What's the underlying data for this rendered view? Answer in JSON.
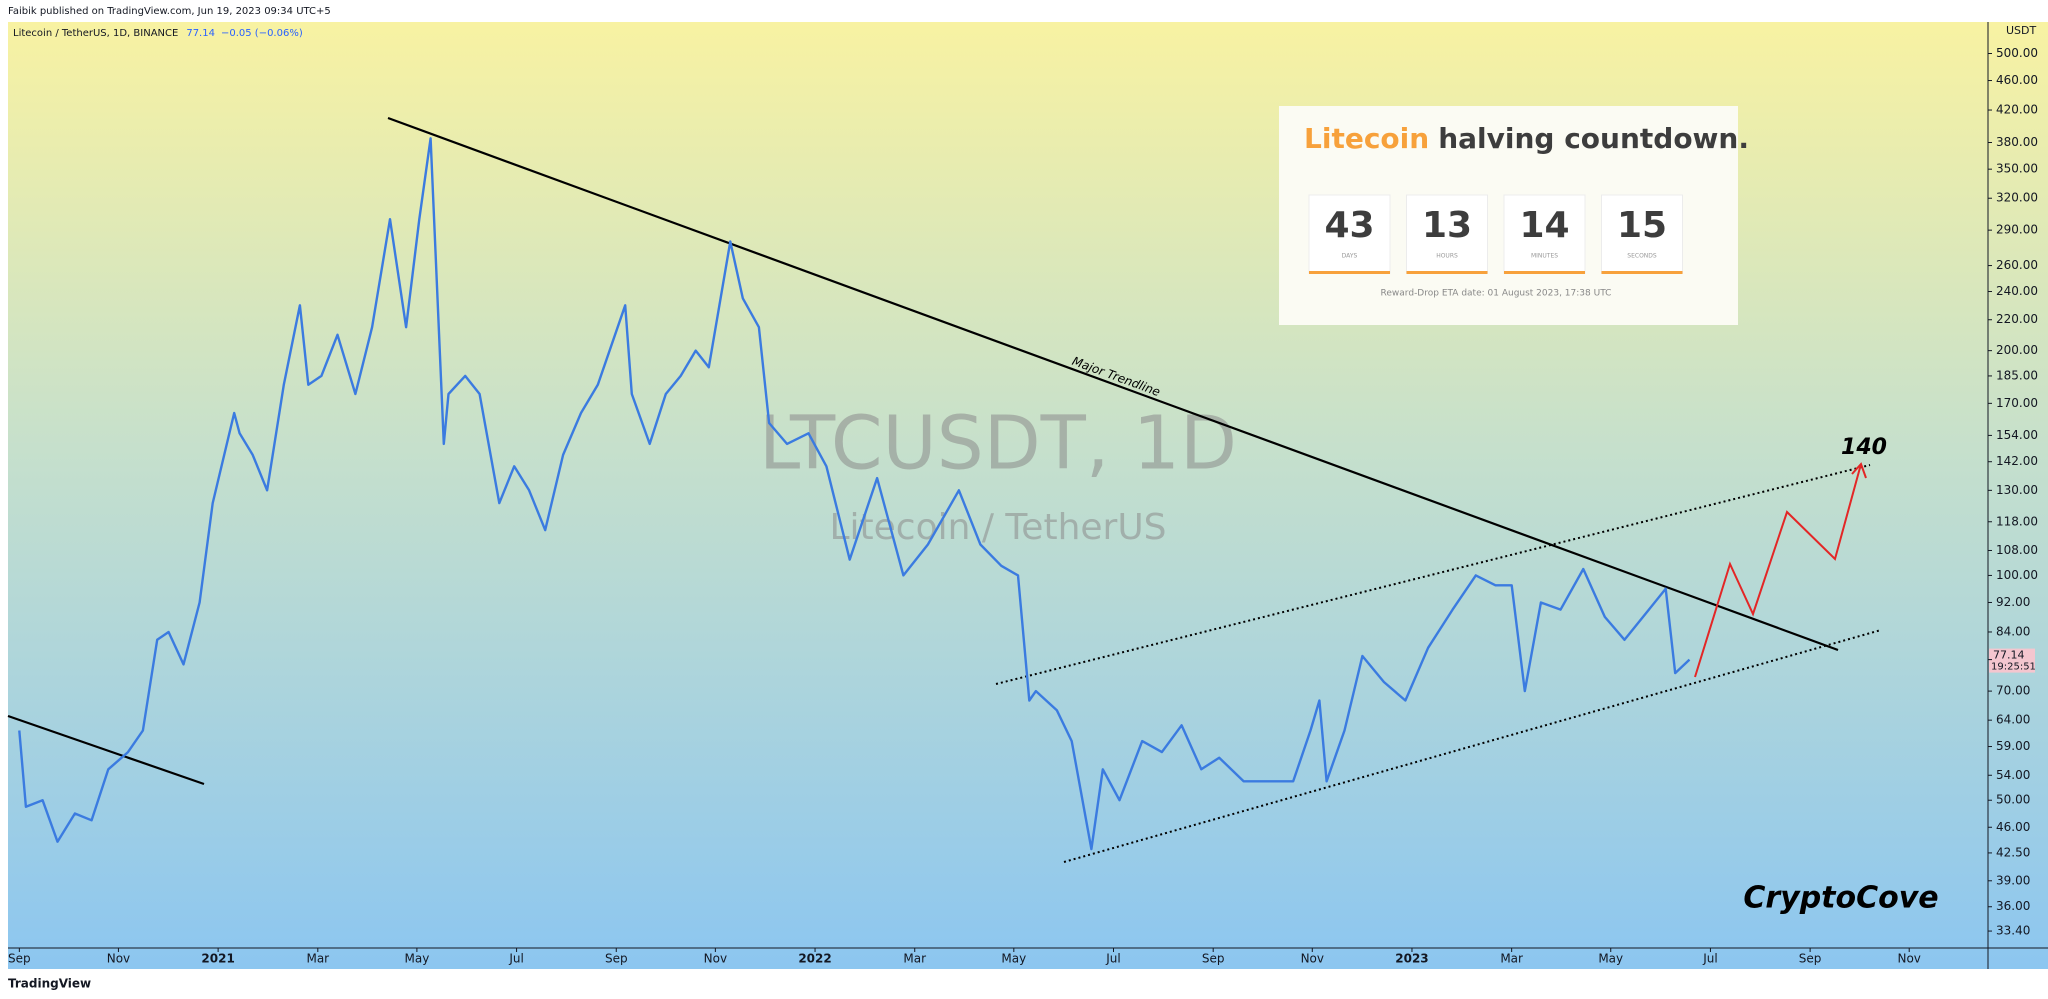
{
  "header": "Faibik published on TradingView.com, Jun 19, 2023 09:34 UTC+5",
  "footer": "TradingView",
  "chart_data": {
    "type": "line",
    "change": "−0.05 (−0.06%)",
    "bar_countdown": "19:25:51",
    "watermark": "LTCUSDT, 1D",
    "watermark_sub": "Litecoin / TetherUS",
    "y_unit": "USDT",
    "log_scale": true,
    "grid": false,
    "x": [
      2020.667,
      2020.678,
      2020.706,
      2020.731,
      2020.76,
      2020.788,
      2020.816,
      2020.849,
      2020.874,
      2020.898,
      2020.917,
      2020.942,
      2020.969,
      2020.991,
      2021.027,
      2021.036,
      2021.058,
      2021.082,
      2021.11,
      2021.137,
      2021.151,
      2021.173,
      2021.2,
      2021.23,
      2021.258,
      2021.288,
      2021.315,
      2021.337,
      2021.356,
      2021.378,
      2021.386,
      2021.414,
      2021.438,
      2021.471,
      2021.496,
      2021.521,
      2021.548,
      2021.578,
      2021.608,
      2021.636,
      2021.682,
      2021.693,
      2021.723,
      2021.75,
      2021.775,
      2021.8,
      2021.822,
      2021.858,
      2021.879,
      2021.906,
      2021.923,
      2021.953,
      2021.989,
      2022.019,
      2022.058,
      2022.104,
      2022.148,
      2022.189,
      2022.241,
      2022.277,
      2022.312,
      2022.34,
      2022.359,
      2022.37,
      2022.405,
      2022.43,
      2022.463,
      2022.482,
      2022.51,
      2022.548,
      2022.581,
      2022.614,
      2022.647,
      2022.677,
      2022.718,
      2022.76,
      2022.801,
      2022.83,
      2022.845,
      2022.857,
      2022.887,
      2022.917,
      2022.953,
      2022.989,
      2023.027,
      2023.068,
      2023.107,
      2023.14,
      2023.167,
      2023.189,
      2023.216,
      2023.249,
      2023.287,
      2023.323,
      2023.356,
      2023.397,
      2023.425,
      2023.441,
      2023.465
    ],
    "series": [
      {
        "name": "Litecoin / TetherUS, 1D, BINANCE",
        "color": "#3b7be0",
        "values": [
          62,
          49,
          50,
          44,
          48,
          47,
          55,
          58,
          62,
          82,
          84,
          76,
          92,
          125,
          165,
          155,
          145,
          130,
          180,
          230,
          180,
          185,
          210,
          175,
          215,
          300,
          215,
          300,
          385,
          150,
          175,
          185,
          175,
          125,
          140,
          130,
          115,
          145,
          165,
          180,
          230,
          175,
          150,
          175,
          185,
          200,
          190,
          280,
          235,
          215,
          160,
          150,
          155,
          140,
          105,
          135,
          100,
          110,
          130,
          110,
          103,
          100,
          68,
          70,
          66,
          60,
          43,
          55,
          50,
          60,
          58,
          63,
          55,
          57,
          53,
          53,
          53,
          62,
          68,
          53,
          62,
          78,
          72,
          68,
          80,
          90,
          100,
          97,
          97,
          70,
          92,
          90,
          102,
          88,
          82,
          90,
          96,
          74,
          77.14
        ]
      }
    ],
    "xlim": [
      2020.648,
      2023.965
    ],
    "ylim": [
      31.7,
      551
    ],
    "xticks": [
      {
        "value": 2020.667,
        "label": "Sep"
      },
      {
        "value": 2020.833,
        "label": "Nov"
      },
      2021,
      {
        "value": 2021.167,
        "label": "Mar"
      },
      {
        "value": 2021.333,
        "label": "May"
      },
      {
        "value": 2021.5,
        "label": "Jul"
      },
      {
        "value": 2021.667,
        "label": "Sep"
      },
      {
        "value": 2021.833,
        "label": "Nov"
      },
      2022,
      {
        "value": 2022.167,
        "label": "Mar"
      },
      {
        "value": 2022.333,
        "label": "May"
      },
      {
        "value": 2022.5,
        "label": "Jul"
      },
      {
        "value": 2022.667,
        "label": "Sep"
      },
      {
        "value": 2022.833,
        "label": "Nov"
      },
      2023,
      {
        "value": 2023.167,
        "label": "Mar"
      },
      {
        "value": 2023.333,
        "label": "May"
      },
      {
        "value": 2023.5,
        "label": "Jul"
      },
      {
        "value": 2023.667,
        "label": "Sep"
      },
      {
        "value": 2023.833,
        "label": "Nov"
      }
    ],
    "yticks": [
      {
        "value": 500,
        "label": "500.00"
      },
      {
        "value": 460,
        "label": "460.00"
      },
      {
        "value": 420,
        "label": "420.00"
      },
      {
        "value": 380,
        "label": "380.00"
      },
      {
        "value": 350,
        "label": "350.00"
      },
      {
        "value": 320,
        "label": "320.00"
      },
      {
        "value": 290,
        "label": "290.00"
      },
      {
        "value": 260,
        "label": "260.00"
      },
      {
        "value": 240,
        "label": "240.00"
      },
      {
        "value": 220,
        "label": "220.00"
      },
      {
        "value": 200,
        "label": "200.00"
      },
      {
        "value": 185,
        "label": "185.00"
      },
      {
        "value": 170,
        "label": "170.00"
      },
      {
        "value": 154,
        "label": "154.00"
      },
      {
        "value": 142,
        "label": "142.00"
      },
      {
        "value": 130,
        "label": "130.00"
      },
      {
        "value": 118,
        "label": "118.00"
      },
      {
        "value": 108,
        "label": "108.00"
      },
      {
        "value": 100,
        "label": "100.00"
      },
      {
        "value": 92,
        "label": "92.00"
      },
      {
        "value": 84,
        "label": "84.00"
      },
      {
        "value": 70,
        "label": "70.00"
      },
      {
        "value": 64,
        "label": "64.00"
      },
      {
        "value": 59,
        "label": "59.00"
      },
      {
        "value": 54,
        "label": "54.00"
      },
      {
        "value": 50,
        "label": "50.00"
      },
      {
        "value": 46,
        "label": "46.00"
      },
      {
        "value": 42.5,
        "label": "42.50"
      },
      {
        "value": 39,
        "label": "39.00"
      },
      {
        "value": 36,
        "label": "36.00"
      },
      {
        "value": 33.4,
        "label": "33.40"
      }
    ],
    "annotations": {
      "trendline": "Major Trendline",
      "target": 140,
      "signature": "CryptoCove"
    },
    "countdown": {
      "title_highlight": "Litecoin",
      "title_rest": "halving countdown.",
      "units": [
        {
          "value": "43",
          "label": "DAYS"
        },
        {
          "value": "13",
          "label": "HOURS"
        },
        {
          "value": "14",
          "label": "MINUTES"
        },
        {
          "value": "15",
          "label": "SECONDS"
        }
      ],
      "eta": "Reward-Drop ETA date: 01 August 2023, 17:38 UTC"
    }
  }
}
